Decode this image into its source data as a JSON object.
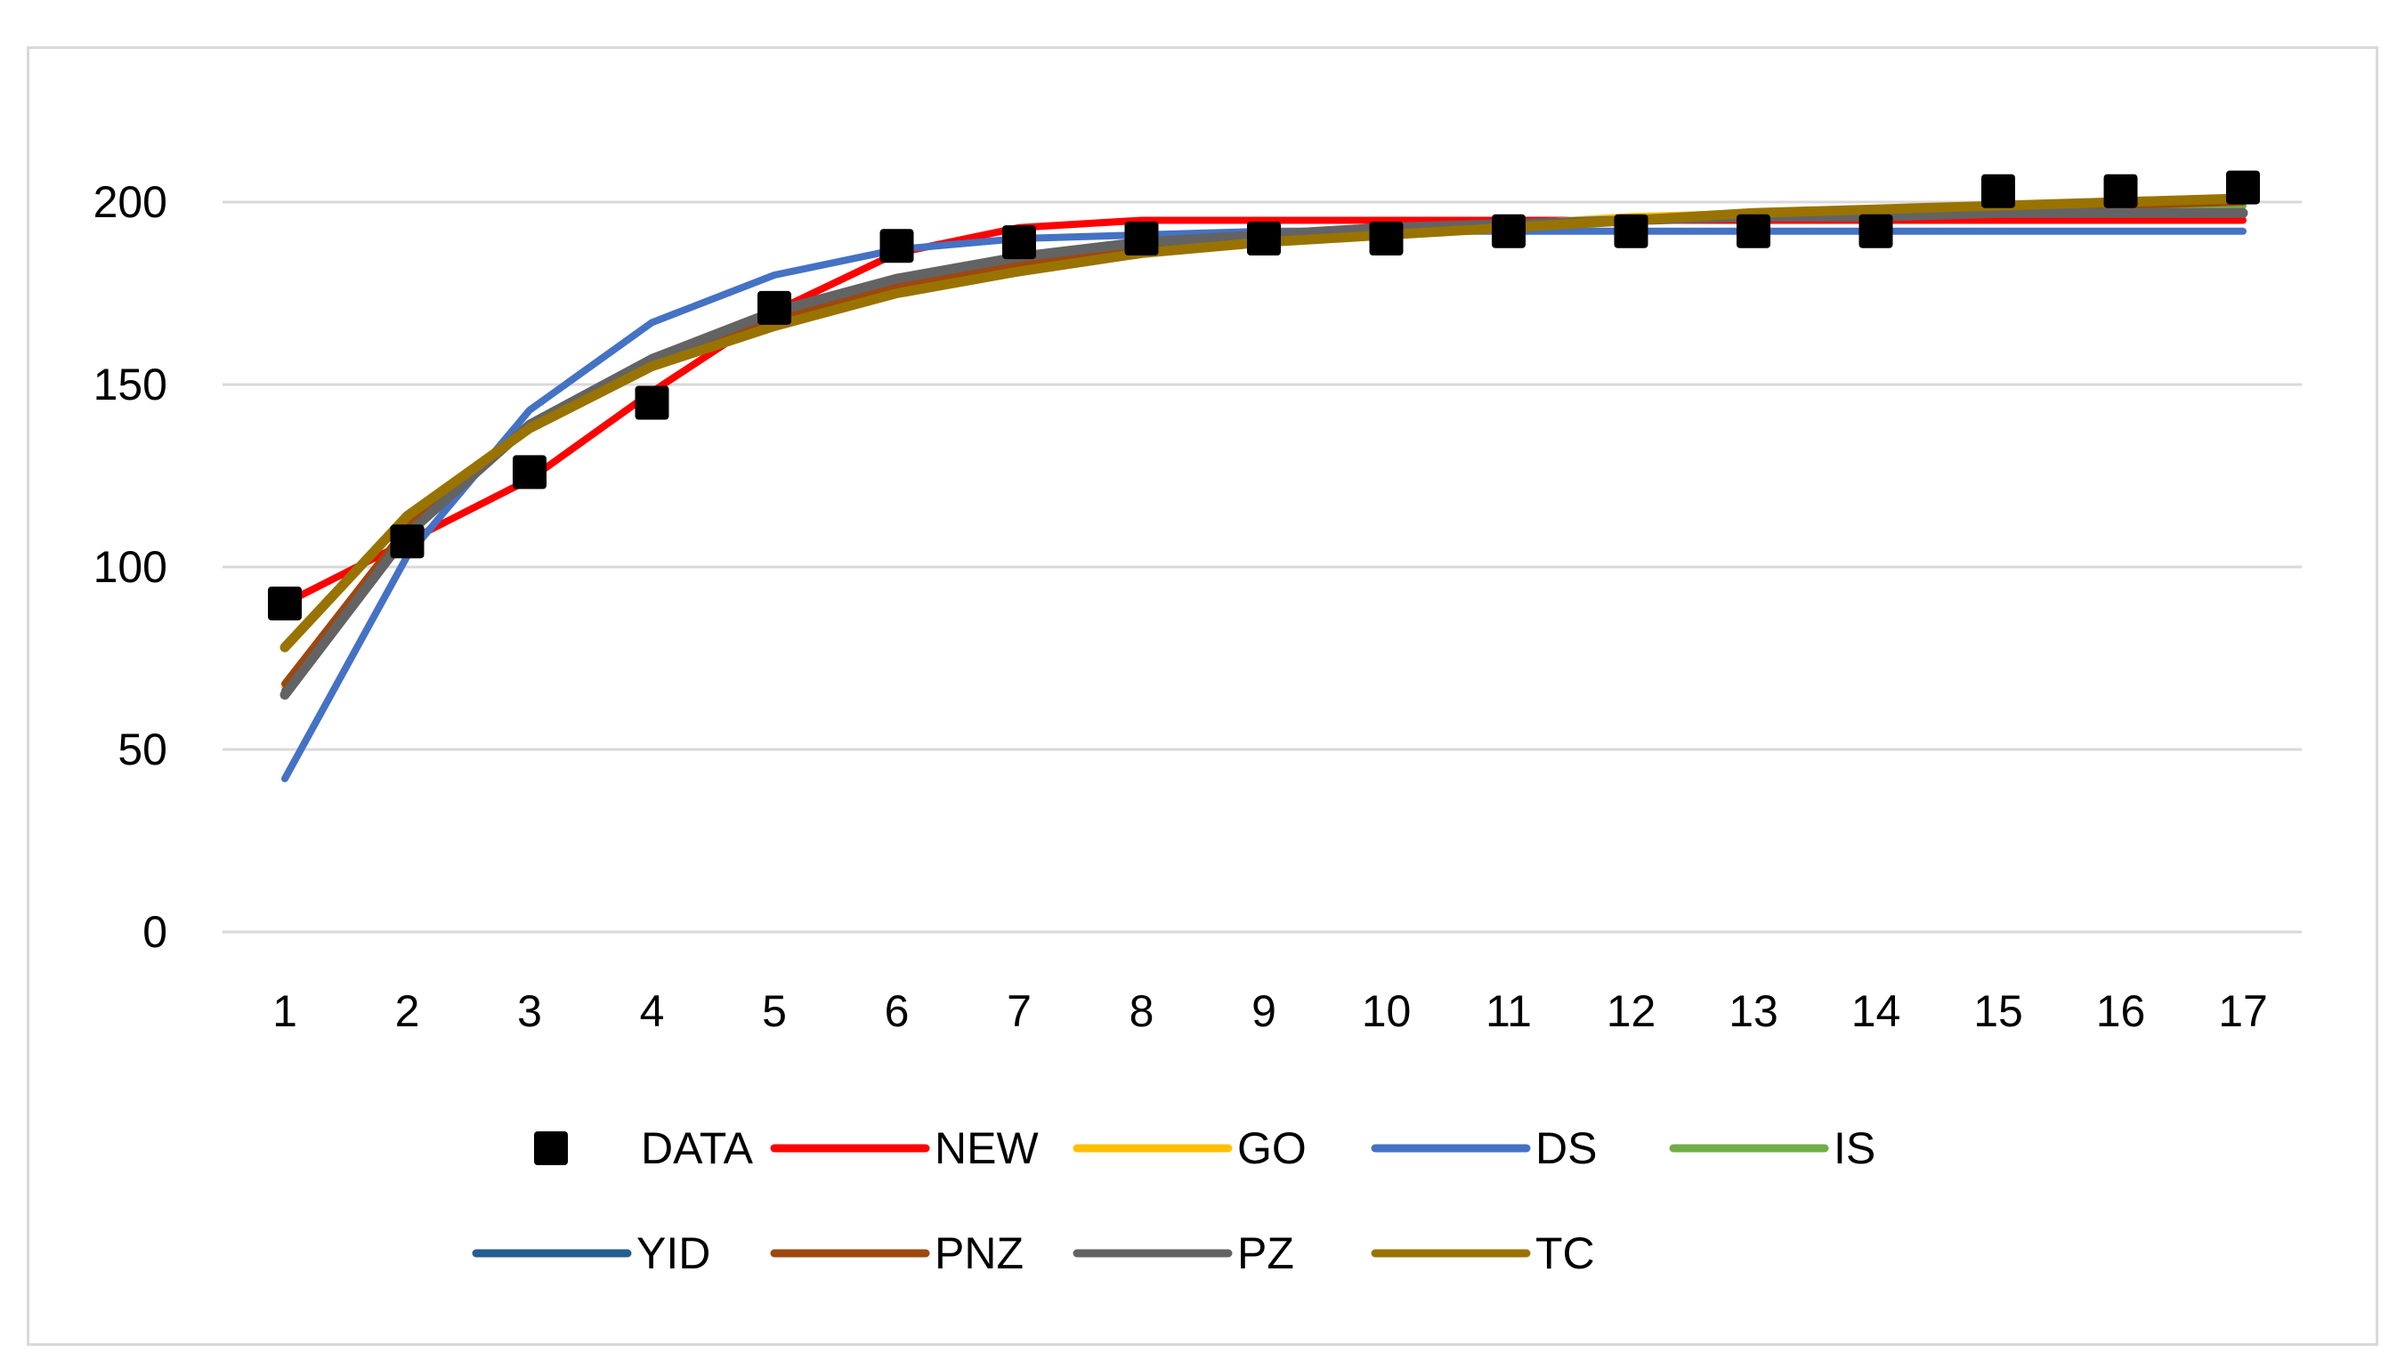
{
  "chart_data": {
    "type": "line",
    "title": "",
    "xlabel": "",
    "ylabel": "",
    "x": [
      1,
      2,
      3,
      4,
      5,
      6,
      7,
      8,
      9,
      10,
      11,
      12,
      13,
      14,
      15,
      16,
      17
    ],
    "x_tick_labels": [
      "1",
      "2",
      "3",
      "4",
      "5",
      "6",
      "7",
      "8",
      "9",
      "10",
      "11",
      "12",
      "13",
      "14",
      "15",
      "16",
      "17"
    ],
    "y_ticks": [
      0,
      50,
      100,
      150,
      200
    ],
    "y_tick_labels": [
      "0",
      "50",
      "100",
      "150",
      "200"
    ],
    "ylim": [
      0,
      230
    ],
    "grid": "horizontal",
    "legend_position": "bottom",
    "series": [
      {
        "name": "DATA",
        "kind": "marker",
        "color": "#000000",
        "values": [
          90,
          107,
          126,
          145,
          171,
          188,
          189,
          190,
          190,
          190,
          192,
          192,
          192,
          192,
          203,
          203,
          204
        ]
      },
      {
        "name": "NEW",
        "kind": "line",
        "color": "#ff0000",
        "values": [
          90,
          107,
          124,
          148,
          170,
          186,
          193,
          195,
          195,
          195,
          195,
          195,
          195,
          195,
          195,
          195,
          195
        ]
      },
      {
        "name": "GO",
        "kind": "line",
        "color": "#ffc000",
        "values": [
          67,
          111,
          139,
          156,
          168,
          177,
          183,
          187,
          190,
          192,
          194,
          196,
          197,
          198,
          199,
          200,
          201
        ]
      },
      {
        "name": "DS",
        "kind": "line",
        "color": "#4472c4",
        "values": [
          42,
          103,
          143,
          167,
          180,
          187,
          190,
          191,
          192,
          192,
          192,
          192,
          192,
          192,
          192,
          192,
          192
        ]
      },
      {
        "name": "IS",
        "kind": "line",
        "color": "#70ad47",
        "values": [
          66,
          110,
          139,
          156,
          168,
          177,
          183,
          187,
          190,
          192,
          194,
          195,
          197,
          198,
          198,
          199,
          199
        ]
      },
      {
        "name": "YID",
        "kind": "line",
        "color": "#255e91",
        "values": [
          66,
          110,
          139,
          157,
          169,
          178,
          184,
          188,
          190,
          192,
          194,
          195,
          196,
          197,
          197,
          197,
          197
        ]
      },
      {
        "name": "PNZ",
        "kind": "line",
        "color": "#9e480e",
        "values": [
          68,
          111,
          139,
          156,
          168,
          177,
          183,
          187,
          190,
          192,
          193,
          195,
          196,
          197,
          198,
          199,
          200
        ]
      },
      {
        "name": "PZ",
        "kind": "line",
        "color": "#636363",
        "values": [
          65,
          109,
          139,
          157,
          170,
          179,
          185,
          189,
          191,
          193,
          194,
          195,
          196,
          196,
          197,
          197,
          197
        ]
      },
      {
        "name": "TC",
        "kind": "line",
        "color": "#997300",
        "values": [
          78,
          114,
          138,
          155,
          166,
          175,
          181,
          186,
          189,
          191,
          193,
          195,
          197,
          198,
          199,
          200,
          201
        ]
      }
    ]
  }
}
